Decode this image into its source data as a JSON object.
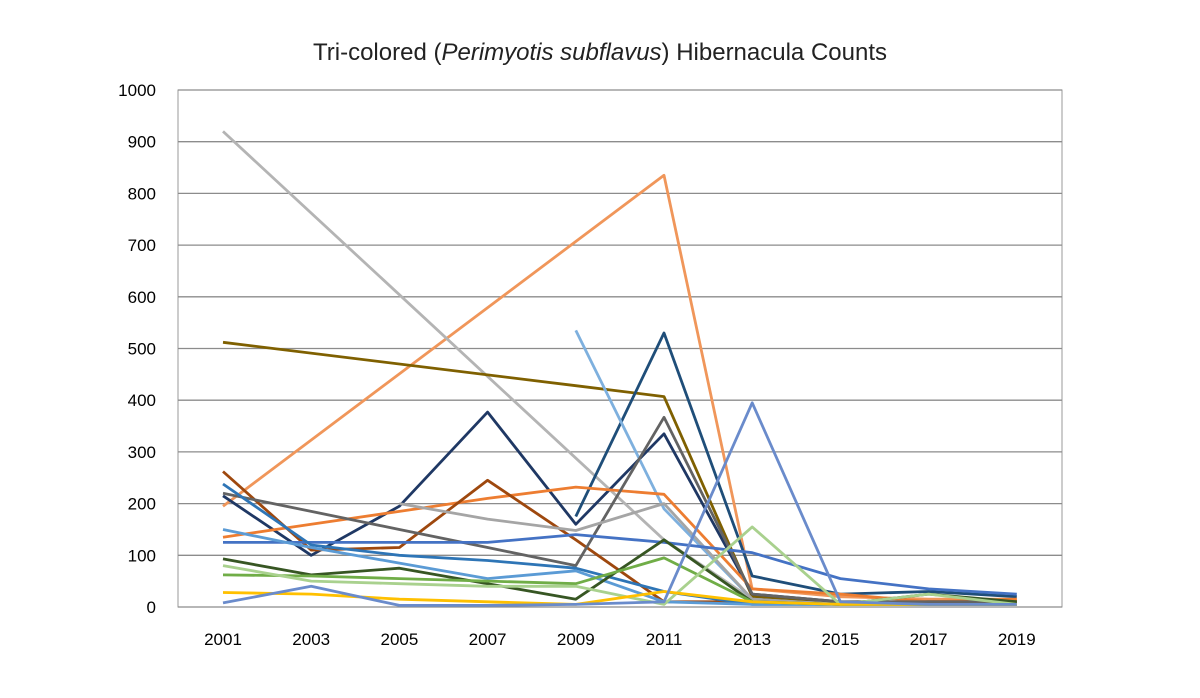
{
  "chart_data": {
    "type": "line",
    "title_prefix": "Tri-colored (",
    "title_italic": "Perimyotis subflavus",
    "title_suffix": ") Hibernacula Counts",
    "xlabel": "",
    "ylabel": "",
    "x": [
      2001,
      2003,
      2005,
      2007,
      2009,
      2011,
      2013,
      2015,
      2017,
      2019
    ],
    "ylim": [
      0,
      1000
    ],
    "yticks": [
      0,
      100,
      200,
      300,
      400,
      500,
      600,
      700,
      800,
      900,
      1000
    ],
    "grid": true,
    "legend": "none",
    "series": [
      {
        "color": "#F0965A",
        "values": [
          195,
          null,
          null,
          null,
          null,
          835,
          35,
          20,
          15,
          15
        ]
      },
      {
        "color": "#B4B4B4",
        "values": [
          920,
          null,
          null,
          null,
          null,
          130,
          15,
          5,
          5,
          5
        ]
      },
      {
        "color": "#7F6000",
        "values": [
          512,
          null,
          null,
          null,
          428,
          407,
          20,
          10,
          10,
          10
        ]
      },
      {
        "color": "#1F3864",
        "values": [
          215,
          100,
          195,
          377,
          160,
          335,
          25,
          10,
          5,
          5
        ]
      },
      {
        "color": "#1F4E79",
        "values": [
          null,
          null,
          null,
          null,
          175,
          530,
          60,
          25,
          30,
          20
        ]
      },
      {
        "color": "#7EB0DE",
        "values": [
          null,
          null,
          null,
          null,
          535,
          190,
          15,
          5,
          5,
          5
        ]
      },
      {
        "color": "#ED7D31",
        "values": [
          135,
          160,
          185,
          210,
          232,
          218,
          35,
          25,
          10,
          15
        ]
      },
      {
        "color": "#9E480E",
        "values": [
          262,
          110,
          115,
          245,
          130,
          10,
          10,
          5,
          10,
          10
        ]
      },
      {
        "color": "#636363",
        "values": [
          220,
          185,
          150,
          115,
          80,
          367,
          25,
          10,
          10,
          10
        ]
      },
      {
        "color": "#A5A5A5",
        "values": [
          null,
          null,
          200,
          170,
          148,
          200,
          15,
          5,
          5,
          5
        ]
      },
      {
        "color": "#4472C4",
        "values": [
          125,
          125,
          125,
          125,
          140,
          125,
          105,
          55,
          35,
          25
        ]
      },
      {
        "color": "#2E75B6",
        "values": [
          238,
          120,
          100,
          90,
          75,
          30,
          5,
          5,
          5,
          5
        ]
      },
      {
        "color": "#5B9BD5",
        "values": [
          150,
          115,
          85,
          55,
          70,
          10,
          5,
          5,
          5,
          5
        ]
      },
      {
        "color": "#375623",
        "values": [
          93,
          62,
          75,
          45,
          15,
          130,
          10,
          5,
          25,
          10
        ]
      },
      {
        "color": "#70AD47",
        "values": [
          62,
          60,
          55,
          50,
          45,
          95,
          10,
          5,
          5,
          5
        ]
      },
      {
        "color": "#A9D18E",
        "values": [
          80,
          50,
          45,
          40,
          40,
          5,
          155,
          5,
          25,
          5
        ]
      },
      {
        "color": "#FFC000",
        "values": [
          28,
          25,
          15,
          10,
          5,
          30,
          10,
          5,
          5,
          5
        ]
      },
      {
        "color": "#6A8BCB",
        "values": [
          8,
          40,
          3,
          3,
          5,
          10,
          395,
          10,
          5,
          5
        ]
      }
    ]
  }
}
